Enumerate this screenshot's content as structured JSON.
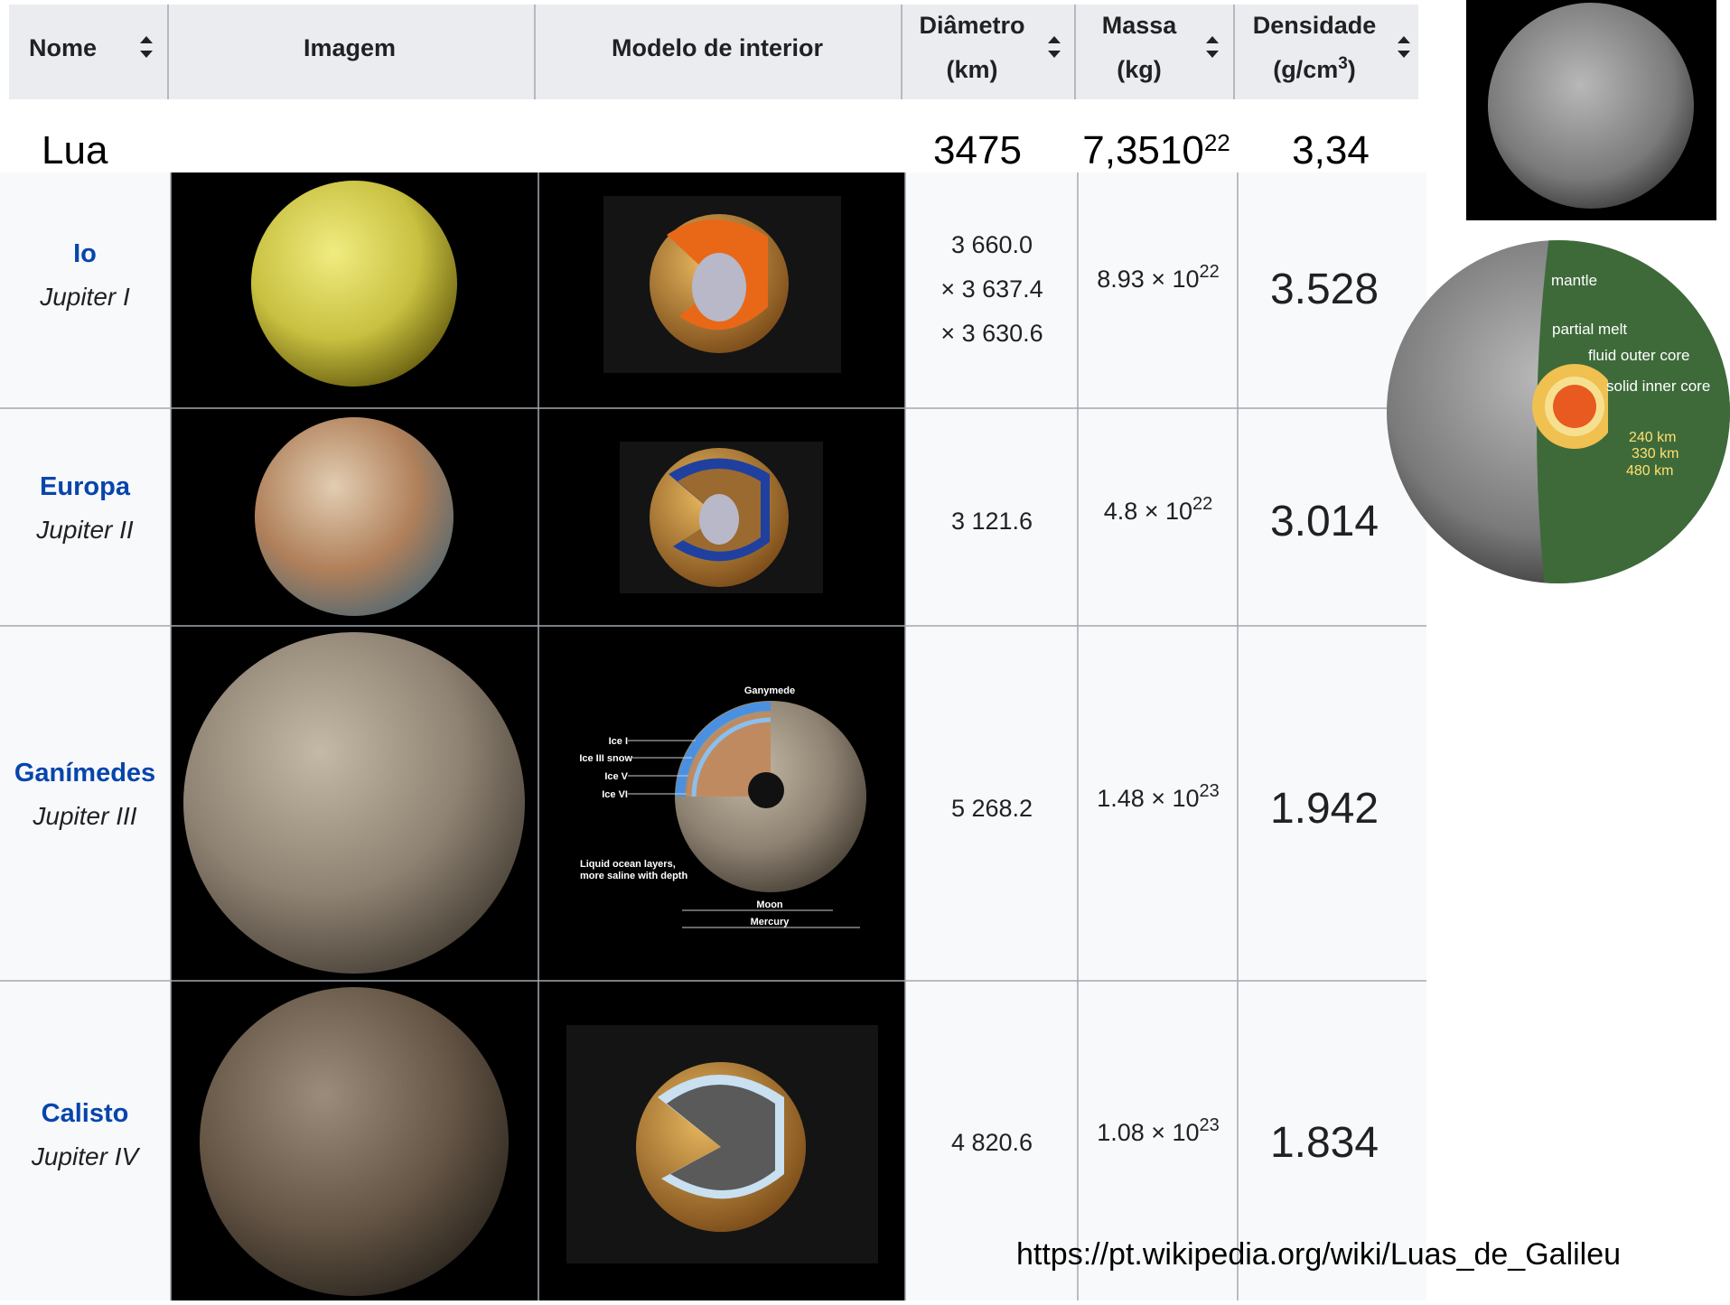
{
  "header": {
    "nome": "Nome",
    "imagem": "Imagem",
    "modelo": "Modelo de interior",
    "diametro": [
      "Diâmetro",
      "(km)"
    ],
    "massa": [
      "Massa",
      "(kg)"
    ],
    "densidade": [
      "Densidade",
      "(g/cm",
      "3",
      ")"
    ]
  },
  "lua": {
    "name": "Lua",
    "diameter": "3475",
    "mass": "7,3510",
    "mass_exp": "22",
    "density": "3,34"
  },
  "rows": [
    {
      "name": "Io",
      "designation": "Jupiter I",
      "diameter": [
        "3 660.0",
        "× 3 637.4",
        "× 3 630.6"
      ],
      "mass": "8.93 × 10",
      "mass_exp": "22",
      "density": "3.528"
    },
    {
      "name": "Europa",
      "designation": "Jupiter II",
      "diameter": [
        "3 121.6"
      ],
      "mass": "4.8 × 10",
      "mass_exp": "22",
      "density": "3.014"
    },
    {
      "name": "Ganímedes",
      "designation": "Jupiter III",
      "diameter": [
        "5 268.2"
      ],
      "mass": "1.48 × 10",
      "mass_exp": "23",
      "density": "1.942"
    },
    {
      "name": "Calisto",
      "designation": "Jupiter IV",
      "diameter": [
        "4 820.6"
      ],
      "mass": "1.08 × 10",
      "mass_exp": "23",
      "density": "1.834"
    }
  ],
  "ganymede_diagram": {
    "title": "Ganymede",
    "layers": [
      "Ice I",
      "Ice III snow",
      "Ice V",
      "Ice VI"
    ],
    "ocean": [
      "Liquid ocean layers,",
      "more saline with depth"
    ],
    "scale": [
      "Moon",
      "Mercury"
    ]
  },
  "moon_diagram": {
    "labels": [
      "mantle",
      "partial melt",
      "fluid outer core",
      "solid inner core"
    ],
    "radii": [
      "240 km",
      "330 km",
      "480 km"
    ]
  },
  "source_url": "https://pt.wikipedia.org/wiki/Luas_de_Galileu"
}
